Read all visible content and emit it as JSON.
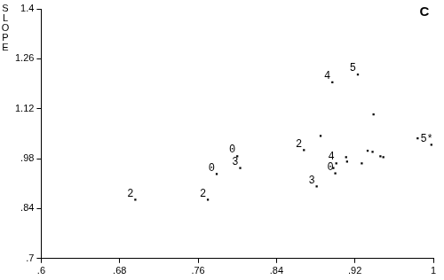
{
  "chart_data": {
    "type": "scatter",
    "title": "C",
    "y_label": "SLOPE",
    "x": [
      0.696,
      0.77,
      0.779,
      0.8,
      0.803,
      0.868,
      0.885,
      0.897,
      0.923,
      0.939,
      0.881,
      0.9,
      0.901,
      0.911,
      0.912,
      0.898,
      0.927,
      0.933,
      0.938,
      0.946,
      0.949,
      0.984,
      0.998
    ],
    "values": [
      0.865,
      0.865,
      0.937,
      0.987,
      0.954,
      1.004,
      1.044,
      1.194,
      1.216,
      1.104,
      0.902,
      0.939,
      0.967,
      0.984,
      0.972,
      0.954,
      0.967,
      1.002,
      0.999,
      0.987,
      0.984,
      1.037,
      1.019
    ],
    "point_labels": [
      "2",
      "2",
      "0",
      "0",
      "3",
      "2",
      null,
      "4",
      "5",
      null,
      "3",
      "0",
      "4",
      null,
      null,
      null,
      null,
      null,
      null,
      null,
      null,
      null,
      "5*"
    ],
    "color": "#000000",
    "marker": "square",
    "xlim": [
      0.6,
      1
    ],
    "xticks": [
      {
        "value": 0.6,
        "label": ".6"
      },
      {
        "value": 0.68,
        "label": ".68"
      },
      {
        "value": 0.76,
        "label": ".76"
      },
      {
        "value": 0.84,
        "label": ".84"
      },
      {
        "value": 0.92,
        "label": ".92"
      },
      1
    ],
    "ylim": [
      0.7,
      1.4
    ],
    "yticks": [
      {
        "value": 0.7,
        "label": ".7"
      },
      {
        "value": 0.84,
        "label": ".84"
      },
      {
        "value": 0.98,
        "label": ".98"
      },
      1.12,
      1.26,
      1.4
    ],
    "grid": false
  }
}
